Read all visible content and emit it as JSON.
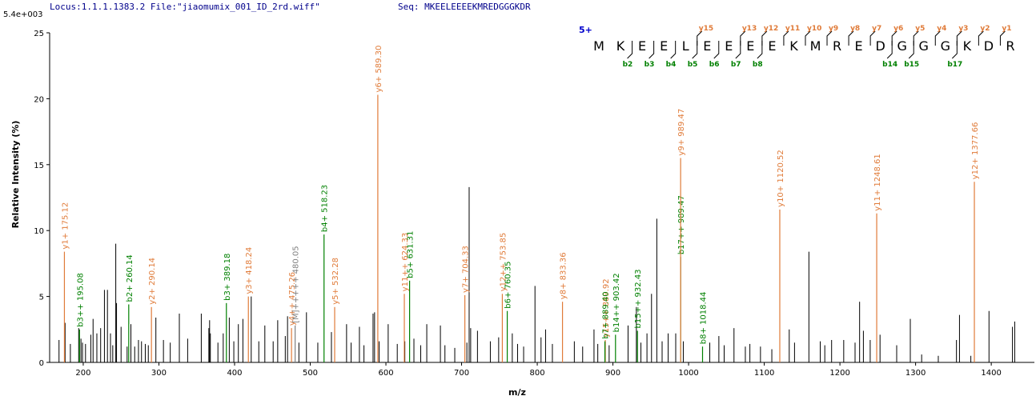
{
  "chart_data": {
    "type": "spectrum",
    "header_locus": "Locus:1.1.1.1383.2 File:\"jiaomumix_001_ID_2rd.wiff\"",
    "header_seq": "Seq: MKEELEEEEKMREDGGGKDR",
    "scale_label": "5.4e+003",
    "y_label": "Relative  Intensity (%)",
    "x_label": "m/z",
    "xlim": [
      155.6,
      1457
    ],
    "ylim": [
      0,
      25
    ],
    "xticks": [
      200,
      300,
      400,
      500,
      600,
      700,
      800,
      900,
      1000,
      1100,
      1200,
      1300,
      1400
    ],
    "yticks": [
      0,
      5,
      10,
      15,
      20,
      25
    ],
    "peak_color": "#000000",
    "peaks": {
      "mz": [
        168,
        176,
        183,
        194,
        197,
        199,
        203,
        210,
        213,
        218,
        223,
        228,
        232,
        236,
        239,
        243,
        244,
        250,
        258,
        263,
        268,
        273,
        277,
        282,
        286,
        296,
        306,
        315,
        327,
        338,
        356,
        366,
        367,
        368,
        378,
        385,
        393,
        399,
        405,
        411,
        422,
        432,
        440,
        451,
        457,
        467,
        470,
        485,
        495,
        510,
        528,
        548,
        554,
        565,
        571,
        583,
        585,
        591,
        603,
        615,
        625,
        637,
        646,
        654,
        672,
        678,
        691,
        707,
        710,
        712,
        721,
        738,
        749,
        767,
        774,
        782,
        797,
        805,
        811,
        820,
        849,
        860,
        875,
        880,
        895,
        920,
        931,
        937,
        945,
        951,
        958,
        965,
        973,
        983,
        993,
        1028,
        1040,
        1047,
        1060,
        1075,
        1081,
        1095,
        1110,
        1133,
        1140,
        1159,
        1174,
        1180,
        1189,
        1205,
        1220,
        1226,
        1231,
        1240,
        1253,
        1275,
        1293,
        1308,
        1330,
        1354,
        1358,
        1373,
        1397,
        1428,
        1431
      ],
      "intensity": [
        1.7,
        3.0,
        1.4,
        2.6,
        1.8,
        1.5,
        1.4,
        2.1,
        3.3,
        2.2,
        2.6,
        5.5,
        5.5,
        2.2,
        1.3,
        9.0,
        4.5,
        2.7,
        1.2,
        2.9,
        1.2,
        1.7,
        1.6,
        1.4,
        1.3,
        3.4,
        1.7,
        1.5,
        3.7,
        1.8,
        3.7,
        2.6,
        3.2,
        2.2,
        1.5,
        2.2,
        3.4,
        1.6,
        2.9,
        3.3,
        5.0,
        1.6,
        2.8,
        1.6,
        3.2,
        2.0,
        3.5,
        1.5,
        3.8,
        1.5,
        2.3,
        2.9,
        1.5,
        2.7,
        1.3,
        3.7,
        3.8,
        1.6,
        2.9,
        1.4,
        1.6,
        1.8,
        1.3,
        2.9,
        2.8,
        1.3,
        1.1,
        1.5,
        13.3,
        2.6,
        2.4,
        1.6,
        1.9,
        2.2,
        1.4,
        1.2,
        5.8,
        1.9,
        2.5,
        1.4,
        1.6,
        1.2,
        2.5,
        1.4,
        1.3,
        2.8,
        4.2,
        1.5,
        2.2,
        5.2,
        10.9,
        1.6,
        2.2,
        2.2,
        1.6,
        1.5,
        2.0,
        1.3,
        2.6,
        1.2,
        1.4,
        1.2,
        1.0,
        2.5,
        1.5,
        8.4,
        1.6,
        1.3,
        1.7,
        1.7,
        1.5,
        4.6,
        2.4,
        1.7,
        2.1,
        1.3,
        3.3,
        0.6,
        0.5,
        1.7,
        3.6,
        0.5,
        3.9,
        2.7,
        3.1
      ]
    },
    "annotated": [
      {
        "label": "y1+ 175.12",
        "mz": 175.12,
        "intensity": 8.4,
        "color": "#e07b39"
      },
      {
        "label": "b3++ 195.08",
        "mz": 195.08,
        "intensity": 2.5,
        "color": "#008000"
      },
      {
        "label": "b2+ 260.14",
        "mz": 260.14,
        "intensity": 4.4,
        "color": "#008000"
      },
      {
        "label": "y2+ 290.14",
        "mz": 290.14,
        "intensity": 4.2,
        "color": "#e07b39"
      },
      {
        "label": "b3+ 389.18",
        "mz": 389.18,
        "intensity": 4.5,
        "color": "#008000"
      },
      {
        "label": "y3+ 418.24",
        "mz": 418.24,
        "intensity": 5.0,
        "color": "#e07b39"
      },
      {
        "label": "y4++ 475.26",
        "mz": 475.26,
        "intensity": 2.6,
        "color": "#e07b39"
      },
      {
        "label": "[M]+++++ 480.05",
        "mz": 480.05,
        "intensity": 2.8,
        "color": "#808080"
      },
      {
        "label": "b4+ 518.23",
        "mz": 518.23,
        "intensity": 9.7,
        "color": "#008000"
      },
      {
        "label": "y5+ 532.28",
        "mz": 532.28,
        "intensity": 4.2,
        "color": "#e07b39"
      },
      {
        "label": "y6+ 589.30",
        "mz": 589.3,
        "intensity": 20.3,
        "color": "#e07b39"
      },
      {
        "label": "y11++ 624.33",
        "mz": 624.33,
        "intensity": 5.2,
        "color": "#e07b39"
      },
      {
        "label": "b5+ 631.31",
        "mz": 631.31,
        "intensity": 6.2,
        "color": "#008000"
      },
      {
        "label": "y7+ 704.33",
        "mz": 704.33,
        "intensity": 5.1,
        "color": "#e07b39"
      },
      {
        "label": "y12++ 753.85",
        "mz": 753.85,
        "intensity": 5.2,
        "color": "#e07b39"
      },
      {
        "label": "b6+ 760.35",
        "mz": 760.35,
        "intensity": 3.9,
        "color": "#008000"
      },
      {
        "label": "y8+ 833.36",
        "mz": 833.36,
        "intensity": 4.6,
        "color": "#e07b39"
      },
      {
        "label": "y15++ 889.92",
        "mz": 889.92,
        "intensity": 1.7,
        "color": "#e07b39"
      },
      {
        "label": "b7+ 889.40",
        "mz": 889.4,
        "intensity": 1.6,
        "color": "#008000"
      },
      {
        "label": "b14++ 903.42",
        "mz": 903.42,
        "intensity": 2.1,
        "color": "#008000"
      },
      {
        "label": "b15++ 932.43",
        "mz": 932.43,
        "intensity": 2.4,
        "color": "#008000"
      },
      {
        "label": "b17++ 989.47",
        "mz": 989.47,
        "intensity": 8.0,
        "color": "#008000"
      },
      {
        "label": "y9+ 989.47",
        "mz": 989.47,
        "intensity": 15.5,
        "color": "#e07b39"
      },
      {
        "label": "b8+ 1018.44",
        "mz": 1018.44,
        "intensity": 1.2,
        "color": "#008000"
      },
      {
        "label": "y10+ 1120.52",
        "mz": 1120.52,
        "intensity": 11.6,
        "color": "#e07b39"
      },
      {
        "label": "y11+ 1248.61",
        "mz": 1248.61,
        "intensity": 11.3,
        "color": "#e07b39"
      },
      {
        "label": "y12+ 1377.66",
        "mz": 1377.66,
        "intensity": 13.7,
        "color": "#e07b39"
      }
    ],
    "sequence_panel": {
      "charge": "5+",
      "residues": [
        "M",
        "K",
        "E",
        "E",
        "L",
        "E",
        "E",
        "E",
        "E",
        "K",
        "M",
        "R",
        "E",
        "D",
        "G",
        "G",
        "G",
        "K",
        "D",
        "R"
      ],
      "y_color": "#e07b39",
      "b_color": "#008000",
      "y_ions": [
        {
          "label": "y15",
          "after": 5
        },
        {
          "label": "y13",
          "after": 7
        },
        {
          "label": "y12",
          "after": 8
        },
        {
          "label": "y11",
          "after": 9
        },
        {
          "label": "y10",
          "after": 10
        },
        {
          "label": "y9",
          "after": 11
        },
        {
          "label": "y8",
          "after": 12
        },
        {
          "label": "y7",
          "after": 13
        },
        {
          "label": "y6",
          "after": 14
        },
        {
          "label": "y5",
          "after": 15
        },
        {
          "label": "y4",
          "after": 16
        },
        {
          "label": "y3",
          "after": 17
        },
        {
          "label": "y2",
          "after": 18
        },
        {
          "label": "y1",
          "after": 19
        }
      ],
      "b_ions": [
        {
          "label": "b2",
          "after": 2
        },
        {
          "label": "b3",
          "after": 3
        },
        {
          "label": "b4",
          "after": 4
        },
        {
          "label": "b5",
          "after": 5
        },
        {
          "label": "b6",
          "after": 6
        },
        {
          "label": "b7",
          "after": 7
        },
        {
          "label": "b8",
          "after": 8
        },
        {
          "label": "b14",
          "after": 14
        },
        {
          "label": "b15",
          "after": 15
        },
        {
          "label": "b17",
          "after": 17
        }
      ]
    }
  }
}
